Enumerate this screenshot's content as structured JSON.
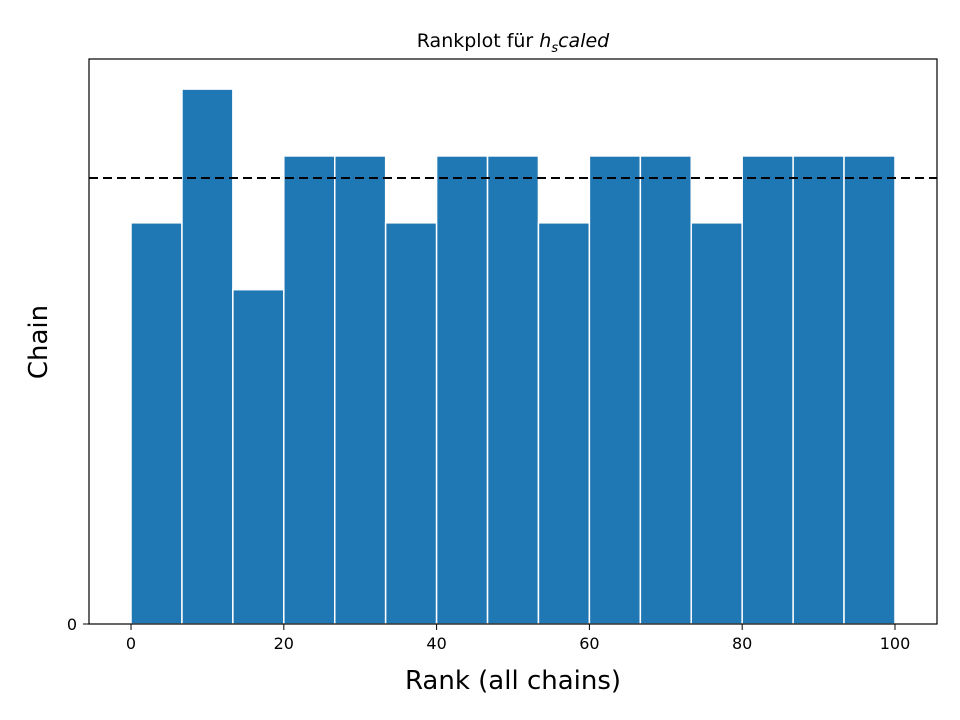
{
  "chart_data": {
    "type": "bar",
    "title_prefix": "Rankplot für ",
    "title_math_base": "h",
    "title_math_sub": "s",
    "title_math_rest": "caled",
    "xlabel": "Rank (all chains)",
    "ylabel": "Chain",
    "xlim": [
      -5.5,
      105.5
    ],
    "ylim": [
      0,
      8.45
    ],
    "xticks": [
      0,
      20,
      40,
      60,
      80,
      100
    ],
    "yticks": [
      0
    ],
    "bin_edges": [
      0,
      6.67,
      13.33,
      20,
      26.67,
      33.33,
      40,
      46.67,
      53.33,
      60,
      66.67,
      73.33,
      80,
      86.67,
      93.33,
      100
    ],
    "values": [
      6,
      8,
      5,
      7,
      7,
      6,
      7,
      7,
      6,
      7,
      7,
      6,
      7,
      7,
      7
    ],
    "reference_line": 6.67,
    "bar_color": "#1f77b4",
    "grid": false
  }
}
